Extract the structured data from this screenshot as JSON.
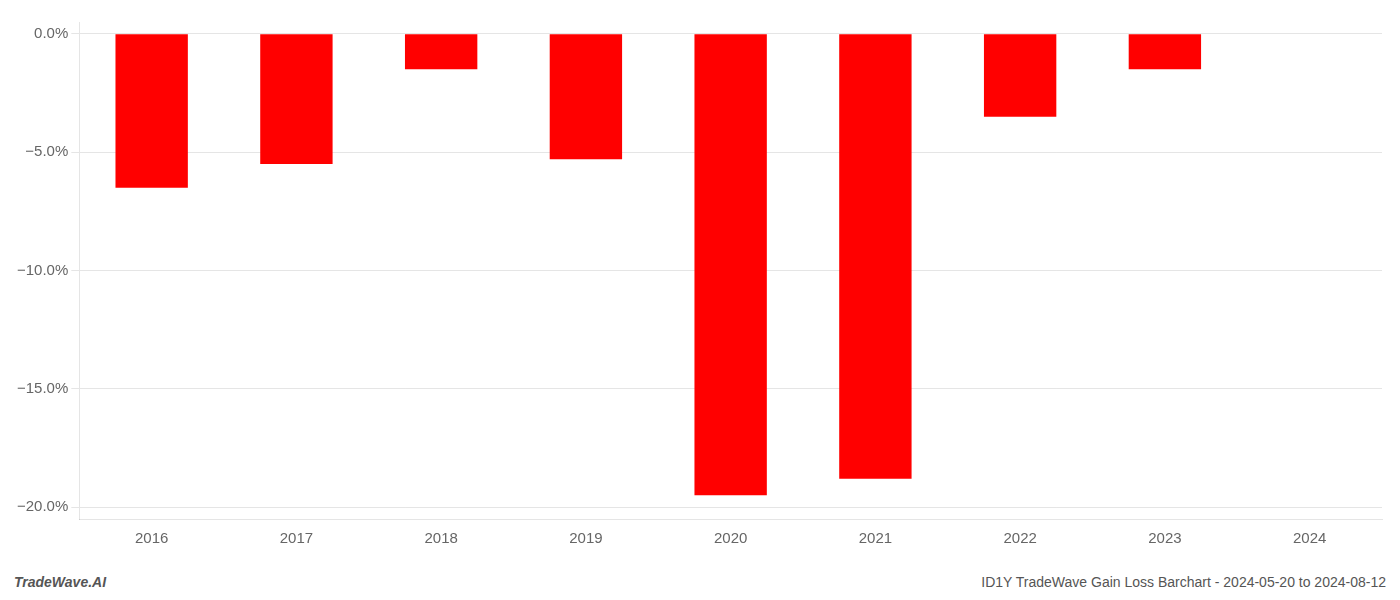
{
  "chart_data": {
    "type": "bar",
    "categories": [
      "2016",
      "2017",
      "2018",
      "2019",
      "2020",
      "2021",
      "2022",
      "2023",
      "2024"
    ],
    "values": [
      -6.5,
      -5.5,
      -1.5,
      -5.3,
      -19.5,
      -18.8,
      -3.5,
      -1.5,
      0.0
    ],
    "color": "#ff0000",
    "ylim": [
      -20.5,
      0.5
    ],
    "yticks": [
      {
        "value": 0.0,
        "label": "0.0%"
      },
      {
        "value": -5.0,
        "label": "−5.0%"
      },
      {
        "value": -10.0,
        "label": "−10.0%"
      },
      {
        "value": -15.0,
        "label": "−15.0%"
      },
      {
        "value": -20.0,
        "label": "−20.0%"
      }
    ],
    "grid": true,
    "annotations": [
      "TradeWave.AI",
      "ID1Y TradeWave Gain Loss Barchart - 2024-05-20 to 2024-08-12"
    ]
  }
}
